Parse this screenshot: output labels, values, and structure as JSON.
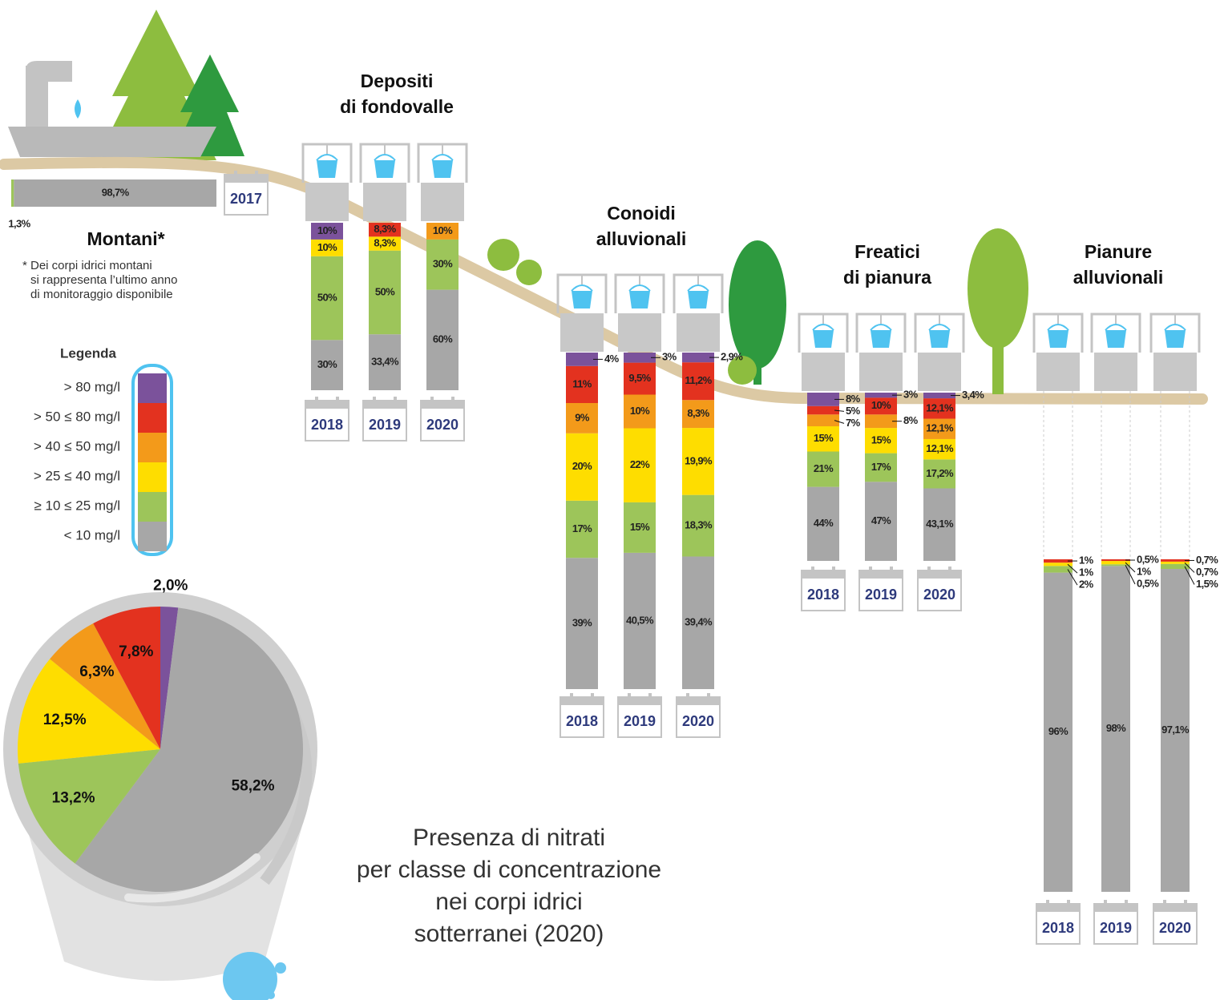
{
  "legend": {
    "title": "Legenda",
    "entries": [
      {
        "label": "> 80 mg/l",
        "color": "#7b529b"
      },
      {
        "label": "> 50 ≤ 80 mg/l",
        "color": "#e3321f"
      },
      {
        "label": "> 40 ≤ 50 mg/l",
        "color": "#f39a1a"
      },
      {
        "label": "> 25 ≤ 40 mg/l",
        "color": "#fedd00"
      },
      {
        "label": "≥ 10 ≤ 25 mg/l",
        "color": "#9dc55a"
      },
      {
        "label": "< 10 mg/l",
        "color": "#a7a7a7"
      }
    ]
  },
  "chart_data": [
    {
      "type": "stacked_bar",
      "orientation": "horizontal",
      "title": [
        "Montani*"
      ],
      "note": [
        "* Dei corpi idrici montani",
        "si rappresenta l’ultimo anno",
        "di monitoraggio disponibile"
      ],
      "categories": [
        "2017"
      ],
      "xlim": [
        0,
        100
      ],
      "series": [
        {
          "color": "#9dc55a",
          "values": [
            1.3
          ],
          "value_labels": [
            "1,3%"
          ]
        },
        {
          "color": "#a7a7a7",
          "values": [
            98.7
          ],
          "value_labels": [
            "98,7%"
          ]
        }
      ]
    },
    {
      "type": "stacked_bar",
      "orientation": "vertical",
      "title": [
        "Depositi",
        "di fondovalle"
      ],
      "categories": [
        "2018",
        "2019",
        "2020"
      ],
      "ylim": [
        0,
        100
      ],
      "series": [
        {
          "color": "#a7a7a7",
          "values": [
            30,
            33.4,
            60
          ],
          "value_labels": [
            "30%",
            "33,4%",
            "60%"
          ]
        },
        {
          "color": "#9dc55a",
          "values": [
            50,
            50,
            30
          ],
          "value_labels": [
            "50%",
            "50%",
            "30%"
          ]
        },
        {
          "color": "#fedd00",
          "values": [
            10,
            8.3,
            null
          ],
          "value_labels": [
            "10%",
            "8,3%",
            null
          ]
        },
        {
          "color": "#f39a1a",
          "values": [
            null,
            null,
            10
          ],
          "value_labels": [
            null,
            null,
            "10%"
          ]
        },
        {
          "color": "#e3321f",
          "values": [
            null,
            8.3,
            null
          ],
          "value_labels": [
            null,
            "8,3%",
            null
          ]
        },
        {
          "color": "#7b529b",
          "values": [
            10,
            null,
            null
          ],
          "value_labels": [
            "10%",
            null,
            null
          ]
        }
      ]
    },
    {
      "type": "stacked_bar",
      "orientation": "vertical",
      "title": [
        "Conoidi",
        "alluvionali"
      ],
      "categories": [
        "2018",
        "2019",
        "2020"
      ],
      "ylim": [
        0,
        100
      ],
      "series": [
        {
          "color": "#a7a7a7",
          "values": [
            39,
            40.5,
            39.4
          ],
          "value_labels": [
            "39%",
            "40,5%",
            "39,4%"
          ]
        },
        {
          "color": "#9dc55a",
          "values": [
            17,
            15,
            18.3
          ],
          "value_labels": [
            "17%",
            "15%",
            "18,3%"
          ]
        },
        {
          "color": "#fedd00",
          "values": [
            20,
            22,
            19.9
          ],
          "value_labels": [
            "20%",
            "22%",
            "19,9%"
          ]
        },
        {
          "color": "#f39a1a",
          "values": [
            9,
            10,
            8.3
          ],
          "value_labels": [
            "9%",
            "10%",
            "8,3%"
          ]
        },
        {
          "color": "#e3321f",
          "values": [
            11,
            9.5,
            11.2
          ],
          "value_labels": [
            "11%",
            "9,5%",
            "11,2%"
          ]
        },
        {
          "color": "#7b529b",
          "values": [
            4,
            3,
            2.9
          ],
          "value_labels": [
            "4%",
            "3%",
            "2,9%"
          ]
        }
      ]
    },
    {
      "type": "stacked_bar",
      "orientation": "vertical",
      "title": [
        "Freatici",
        "di pianura"
      ],
      "categories": [
        "2018",
        "2019",
        "2020"
      ],
      "ylim": [
        0,
        100
      ],
      "series": [
        {
          "color": "#a7a7a7",
          "values": [
            44,
            47,
            43.1
          ],
          "value_labels": [
            "44%",
            "47%",
            "43,1%"
          ]
        },
        {
          "color": "#9dc55a",
          "values": [
            21,
            17,
            17.2
          ],
          "value_labels": [
            "21%",
            "17%",
            "17,2%"
          ]
        },
        {
          "color": "#fedd00",
          "values": [
            15,
            15,
            12.1
          ],
          "value_labels": [
            "15%",
            "15%",
            "12,1%"
          ]
        },
        {
          "color": "#f39a1a",
          "values": [
            7,
            8,
            12.1
          ],
          "value_labels": [
            "7%",
            "8%",
            "12,1%"
          ]
        },
        {
          "color": "#e3321f",
          "values": [
            5,
            10,
            12.1
          ],
          "value_labels": [
            "5%",
            "10%",
            "12,1%"
          ]
        },
        {
          "color": "#7b529b",
          "values": [
            8,
            3,
            3.4
          ],
          "value_labels": [
            "8%",
            "3%",
            "3,4%"
          ]
        }
      ]
    },
    {
      "type": "stacked_bar",
      "orientation": "vertical",
      "title": [
        "Pianure",
        "alluvionali"
      ],
      "categories": [
        "2018",
        "2019",
        "2020"
      ],
      "ylim": [
        0,
        100
      ],
      "series": [
        {
          "color": "#a7a7a7",
          "values": [
            96,
            98,
            97.1
          ],
          "value_labels": [
            "96%",
            "98%",
            "97,1%"
          ]
        },
        {
          "color": "#9dc55a",
          "values": [
            2,
            0.5,
            1.5
          ],
          "value_labels": [
            "2%",
            "0,5%",
            "1,5%"
          ]
        },
        {
          "color": "#fedd00",
          "values": [
            1,
            1,
            0.7
          ],
          "value_labels": [
            "1%",
            "1%",
            "0,7%"
          ]
        },
        {
          "color": "#e3321f",
          "values": [
            1,
            0.5,
            0.7
          ],
          "value_labels": [
            "1%",
            "0,5%",
            "0,7%"
          ]
        }
      ]
    },
    {
      "type": "pie",
      "title": [
        "Presenza di nitrati",
        "per classe di concentrazione",
        "nei corpi idrici",
        "sotterranei (2020)"
      ],
      "values": [
        2.0,
        58.2,
        13.2,
        12.5,
        6.3,
        7.8
      ],
      "value_labels": [
        "2,0%",
        "58,2%",
        "13,2%",
        "12,5%",
        "6,3%",
        "7,8%"
      ],
      "colors": [
        "#7b529b",
        "#a7a7a7",
        "#9dc55a",
        "#fedd00",
        "#f39a1a",
        "#e3321f"
      ]
    }
  ]
}
